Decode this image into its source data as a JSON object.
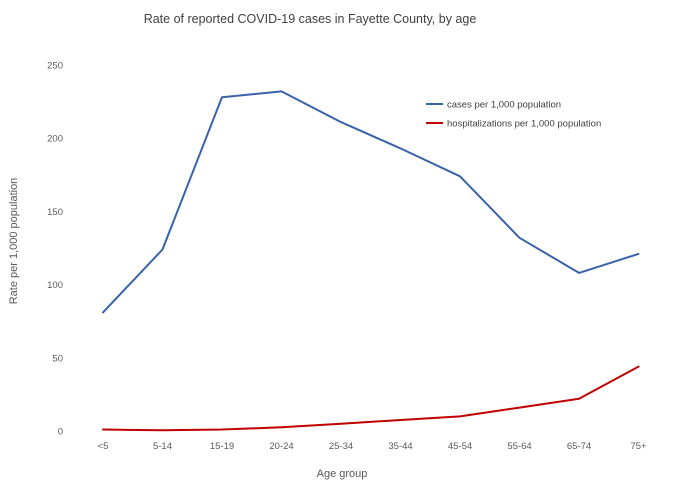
{
  "chart_data": {
    "type": "line",
    "title": "Rate of reported COVID-19 cases in Fayette County, by age",
    "xlabel": "Age group",
    "ylabel": "Rate per 1,000 population",
    "categories": [
      "<5",
      "5-14",
      "15-19",
      "20-24",
      "25-34",
      "35-44",
      "45-54",
      "55-64",
      "65-74",
      "75+"
    ],
    "ylim": [
      0,
      250
    ],
    "yticks": [
      0,
      50,
      100,
      150,
      200,
      250
    ],
    "grid": false,
    "legend_position": "top-right",
    "series": [
      {
        "name": "cases per 1,000 population",
        "color": "#3A62A8",
        "values": [
          81,
          124,
          228,
          232,
          211,
          193,
          174,
          132,
          108,
          121
        ]
      },
      {
        "name": "hospitalizations per 1,000 population",
        "color": "#C00000",
        "values": [
          1,
          0.5,
          1,
          2.5,
          5,
          7.5,
          10,
          16,
          22,
          44
        ]
      }
    ]
  }
}
